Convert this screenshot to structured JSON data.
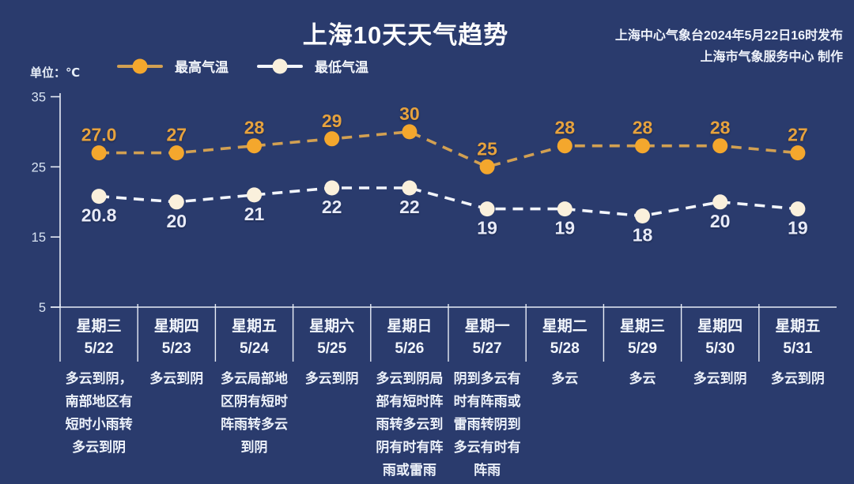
{
  "title": "上海10天天气趋势",
  "publisher": {
    "line1": "上海中心气象台2024年5月22日16时发布",
    "line2": "上海市气象服务中心 制作"
  },
  "unit_label": "单位：℃",
  "colors": {
    "background": "#2A3B6D",
    "axis": "#E8EDF6",
    "high_accent": "#F4A72D",
    "low_accent": "#FAF0DC"
  },
  "chart_data": {
    "type": "line",
    "title": "上海10天天气趋势",
    "ylabel": "单位：℃",
    "ylim": [
      5,
      35
    ],
    "yticks": [
      35,
      25,
      15,
      5
    ],
    "grid": false,
    "legend_position": "top-left",
    "days": [
      {
        "weekday": "星期三",
        "date": "5/22",
        "weather": "多云到阴，南部地区有短时小雨转多云到阴"
      },
      {
        "weekday": "星期四",
        "date": "5/23",
        "weather": "多云到阴"
      },
      {
        "weekday": "星期五",
        "date": "5/24",
        "weather": "多云局部地区阴有短时阵雨转多云到阴"
      },
      {
        "weekday": "星期六",
        "date": "5/25",
        "weather": "多云到阴"
      },
      {
        "weekday": "星期日",
        "date": "5/26",
        "weather": "多云到阴局部有短时阵雨转多云到阴有时有阵雨或雷雨"
      },
      {
        "weekday": "星期一",
        "date": "5/27",
        "weather": "阴到多云有时有阵雨或雷雨转阴到多云有时有阵雨"
      },
      {
        "weekday": "星期二",
        "date": "5/28",
        "weather": "多云"
      },
      {
        "weekday": "星期三",
        "date": "5/29",
        "weather": "多云"
      },
      {
        "weekday": "星期四",
        "date": "5/30",
        "weather": "多云到阴"
      },
      {
        "weekday": "星期五",
        "date": "5/31",
        "weather": "多云到阴"
      }
    ],
    "series": [
      {
        "key": "high-temp",
        "name": "最高气温",
        "label_position": "above",
        "line_color": "#D2A052",
        "dot_color": "#F4A72D",
        "label_color": "#E6A23E",
        "values": [
          27.0,
          27,
          28,
          29,
          30,
          25,
          28,
          28,
          28,
          27
        ],
        "labels": [
          "27.0",
          "27",
          "28",
          "29",
          "30",
          "25",
          "28",
          "28",
          "28",
          "27"
        ]
      },
      {
        "key": "low-temp",
        "name": "最低气温",
        "label_position": "below",
        "line_color": "#F2F5FB",
        "dot_color": "#FAF0DC",
        "label_color": "#E8EBF8",
        "values": [
          20.8,
          20,
          21,
          22,
          22,
          19,
          19,
          18,
          20,
          19
        ],
        "labels": [
          "20.8",
          "20",
          "21",
          "22",
          "22",
          "19",
          "19",
          "18",
          "20",
          "19"
        ]
      }
    ]
  }
}
